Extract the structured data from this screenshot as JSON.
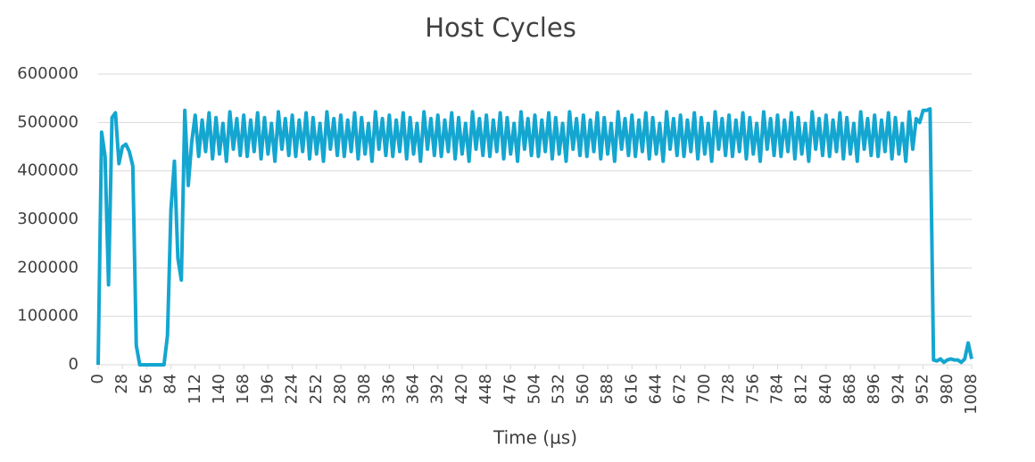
{
  "chart_data": {
    "type": "line",
    "title": "Host Cycles",
    "x_label": "Time (µs)",
    "x": [
      0,
      4,
      8,
      12,
      16,
      20,
      24,
      28,
      32,
      36,
      40,
      44,
      48,
      52,
      56,
      60,
      64,
      68,
      72,
      76,
      80,
      84,
      88,
      92,
      96,
      100,
      104,
      108,
      112,
      116,
      120,
      124,
      128,
      132,
      136,
      140,
      144,
      148,
      152,
      156,
      160,
      164,
      168,
      172,
      176,
      180,
      184,
      188,
      192,
      196,
      200,
      204,
      208,
      212,
      216,
      220,
      224,
      228,
      232,
      236,
      240,
      244,
      248,
      252,
      256,
      260,
      264,
      268,
      272,
      276,
      280,
      284,
      288,
      292,
      296,
      300,
      304,
      308,
      312,
      316,
      320,
      324,
      328,
      332,
      336,
      340,
      344,
      348,
      352,
      356,
      360,
      364,
      368,
      372,
      376,
      380,
      384,
      388,
      392,
      396,
      400,
      404,
      408,
      412,
      416,
      420,
      424,
      428,
      432,
      436,
      440,
      444,
      448,
      452,
      456,
      460,
      464,
      468,
      472,
      476,
      480,
      484,
      488,
      492,
      496,
      500,
      504,
      508,
      512,
      516,
      520,
      524,
      528,
      532,
      536,
      540,
      544,
      548,
      552,
      556,
      560,
      564,
      568,
      572,
      576,
      580,
      584,
      588,
      592,
      596,
      600,
      604,
      608,
      612,
      616,
      620,
      624,
      628,
      632,
      636,
      640,
      644,
      648,
      652,
      656,
      660,
      664,
      668,
      672,
      676,
      680,
      684,
      688,
      692,
      696,
      700,
      704,
      708,
      712,
      716,
      720,
      724,
      728,
      732,
      736,
      740,
      744,
      748,
      752,
      756,
      760,
      764,
      768,
      772,
      776,
      780,
      784,
      788,
      792,
      796,
      800,
      804,
      808,
      812,
      816,
      820,
      824,
      828,
      832,
      836,
      840,
      844,
      848,
      852,
      856,
      860,
      864,
      868,
      872,
      876,
      880,
      884,
      888,
      892,
      896,
      900,
      904,
      908,
      912,
      916,
      920,
      924,
      928,
      932,
      936,
      940,
      944,
      948,
      952,
      956,
      960,
      964,
      968,
      972,
      976,
      980,
      984,
      988,
      992,
      996,
      1000,
      1004,
      1008
    ],
    "series": [
      {
        "name": "Host Cycles",
        "color": "#14a6d0",
        "values": [
          0,
          480000,
          430000,
          165000,
          510000,
          520000,
          415000,
          450000,
          455000,
          440000,
          410000,
          40000,
          0,
          0,
          0,
          0,
          0,
          0,
          0,
          0,
          60000,
          320000,
          420000,
          220000,
          175000,
          525000,
          370000,
          460000,
          515000,
          430000,
          505000,
          440000,
          520000,
          425000,
          510000,
          435000,
          498000,
          420000,
          522000,
          445000,
          508000,
          432000,
          515000,
          430000,
          505000,
          440000,
          520000,
          425000,
          510000,
          435000,
          498000,
          420000,
          522000,
          445000,
          508000,
          432000,
          515000,
          430000,
          505000,
          440000,
          520000,
          425000,
          510000,
          435000,
          498000,
          420000,
          522000,
          445000,
          508000,
          432000,
          515000,
          430000,
          505000,
          440000,
          520000,
          425000,
          510000,
          435000,
          498000,
          420000,
          522000,
          445000,
          508000,
          432000,
          515000,
          430000,
          505000,
          440000,
          520000,
          425000,
          510000,
          435000,
          498000,
          420000,
          522000,
          445000,
          508000,
          432000,
          515000,
          430000,
          505000,
          440000,
          520000,
          425000,
          510000,
          435000,
          498000,
          420000,
          522000,
          445000,
          508000,
          432000,
          515000,
          430000,
          505000,
          440000,
          520000,
          425000,
          510000,
          435000,
          498000,
          420000,
          522000,
          445000,
          508000,
          432000,
          515000,
          430000,
          505000,
          440000,
          520000,
          425000,
          510000,
          435000,
          498000,
          420000,
          522000,
          445000,
          508000,
          432000,
          515000,
          430000,
          505000,
          440000,
          520000,
          425000,
          510000,
          435000,
          498000,
          420000,
          522000,
          445000,
          508000,
          432000,
          515000,
          430000,
          505000,
          440000,
          520000,
          425000,
          510000,
          435000,
          498000,
          420000,
          522000,
          445000,
          508000,
          432000,
          515000,
          430000,
          505000,
          440000,
          520000,
          425000,
          510000,
          435000,
          498000,
          420000,
          522000,
          445000,
          508000,
          432000,
          515000,
          430000,
          505000,
          440000,
          520000,
          425000,
          510000,
          435000,
          498000,
          420000,
          522000,
          445000,
          508000,
          432000,
          515000,
          430000,
          505000,
          440000,
          520000,
          425000,
          510000,
          435000,
          498000,
          420000,
          522000,
          445000,
          508000,
          432000,
          515000,
          430000,
          505000,
          440000,
          520000,
          425000,
          510000,
          435000,
          498000,
          420000,
          522000,
          445000,
          508000,
          432000,
          515000,
          430000,
          505000,
          440000,
          520000,
          425000,
          510000,
          435000,
          498000,
          420000,
          522000,
          445000,
          508000,
          500000,
          525000,
          525000,
          528000,
          10000,
          8000,
          12000,
          5000,
          10000,
          12000,
          10000,
          10000,
          5000,
          12000,
          45000,
          12000
        ]
      }
    ],
    "xlim": [
      0,
      1008
    ],
    "ylim": [
      0,
      600000
    ],
    "xticks": [
      0,
      28,
      56,
      84,
      112,
      140,
      168,
      196,
      224,
      252,
      280,
      308,
      336,
      364,
      392,
      420,
      448,
      476,
      504,
      532,
      560,
      588,
      616,
      644,
      672,
      700,
      728,
      756,
      784,
      812,
      840,
      868,
      896,
      924,
      952,
      980,
      1008
    ],
    "yticks": [
      0,
      100000,
      200000,
      300000,
      400000,
      500000,
      600000
    ],
    "grid": true
  }
}
